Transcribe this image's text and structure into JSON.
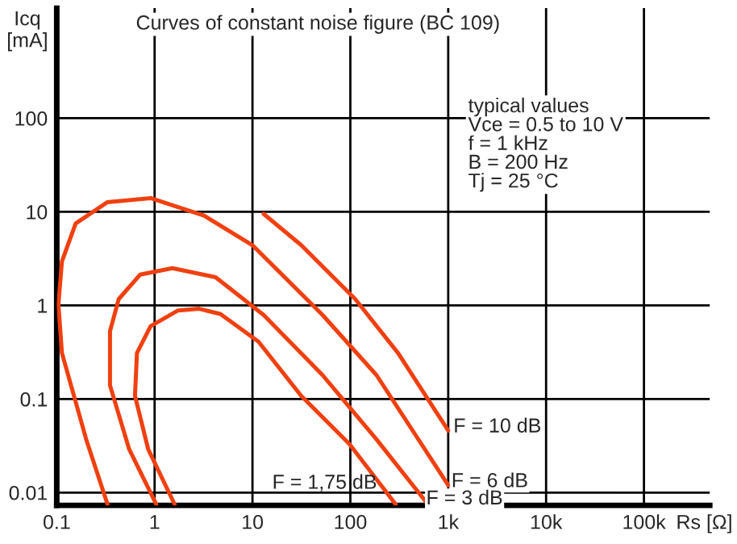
{
  "chart_data": {
    "type": "line",
    "title": "Curves of constant noise figure (BC 109)",
    "xlabel": "Rs [Ω]",
    "ylabel": "Icq\n[mA]",
    "log": "xy",
    "grid": true,
    "marker": "none",
    "line_style": "solid",
    "xlim": [
      0.1,
      470000
    ],
    "ylim": [
      0.0073,
      1500
    ],
    "xticks": [
      0.1,
      1,
      10,
      100,
      {
        "value": 1000,
        "label": "1k"
      },
      {
        "value": 10000,
        "label": "10k"
      },
      {
        "value": 100000,
        "label": "100k"
      }
    ],
    "yticks": [
      0.01,
      0.1,
      1,
      10,
      100
    ],
    "series": [
      {
        "color": "#f04010",
        "x": [
          13,
          31.5,
          112,
          307,
          1000
        ],
        "values": [
          9.5,
          4.4,
          1.17,
          0.31,
          0.046
        ]
      },
      {
        "color": "#f04010",
        "x": [
          0.33,
          0.2,
          0.113,
          0.104,
          0.113,
          0.156,
          0.33,
          0.91,
          3.2,
          10,
          52,
          185,
          1000
        ],
        "values": [
          0.0075,
          0.037,
          0.31,
          1.03,
          2.95,
          7.5,
          12.7,
          14,
          9.1,
          4.4,
          0.79,
          0.18,
          0.012
        ]
      },
      {
        "color": "#f04010",
        "x": [
          1.04,
          0.55,
          0.35,
          0.35,
          0.43,
          0.71,
          1.52,
          4.2,
          13,
          52,
          185,
          620
        ],
        "values": [
          0.0075,
          0.029,
          0.14,
          0.53,
          1.17,
          2.13,
          2.5,
          2.0,
          0.79,
          0.18,
          0.037,
          0.0075
        ]
      },
      {
        "color": "#f04010",
        "x": [
          1.6,
          0.86,
          0.63,
          0.66,
          0.91,
          1.72,
          2.85,
          4.7,
          11.5,
          31.5,
          98,
          290
        ],
        "values": [
          0.0075,
          0.029,
          0.108,
          0.31,
          0.6,
          0.88,
          0.92,
          0.81,
          0.41,
          0.108,
          0.033,
          0.0075
        ]
      }
    ],
    "annotations": [
      {
        "text": "F = 10 dB",
        "x": 1100,
        "y": 0.05
      },
      {
        "text": "F = 6 dB",
        "x": 1050,
        "y": 0.013
      },
      {
        "text": "F = 3 dB",
        "x": 580,
        "y": 0.0085
      },
      "F = 1,75 dB",
      "typical values\nVce = 0.5 to 10 V\nf = 1 kHz\nB = 200 Hz\nTj = 25 °C"
    ]
  }
}
